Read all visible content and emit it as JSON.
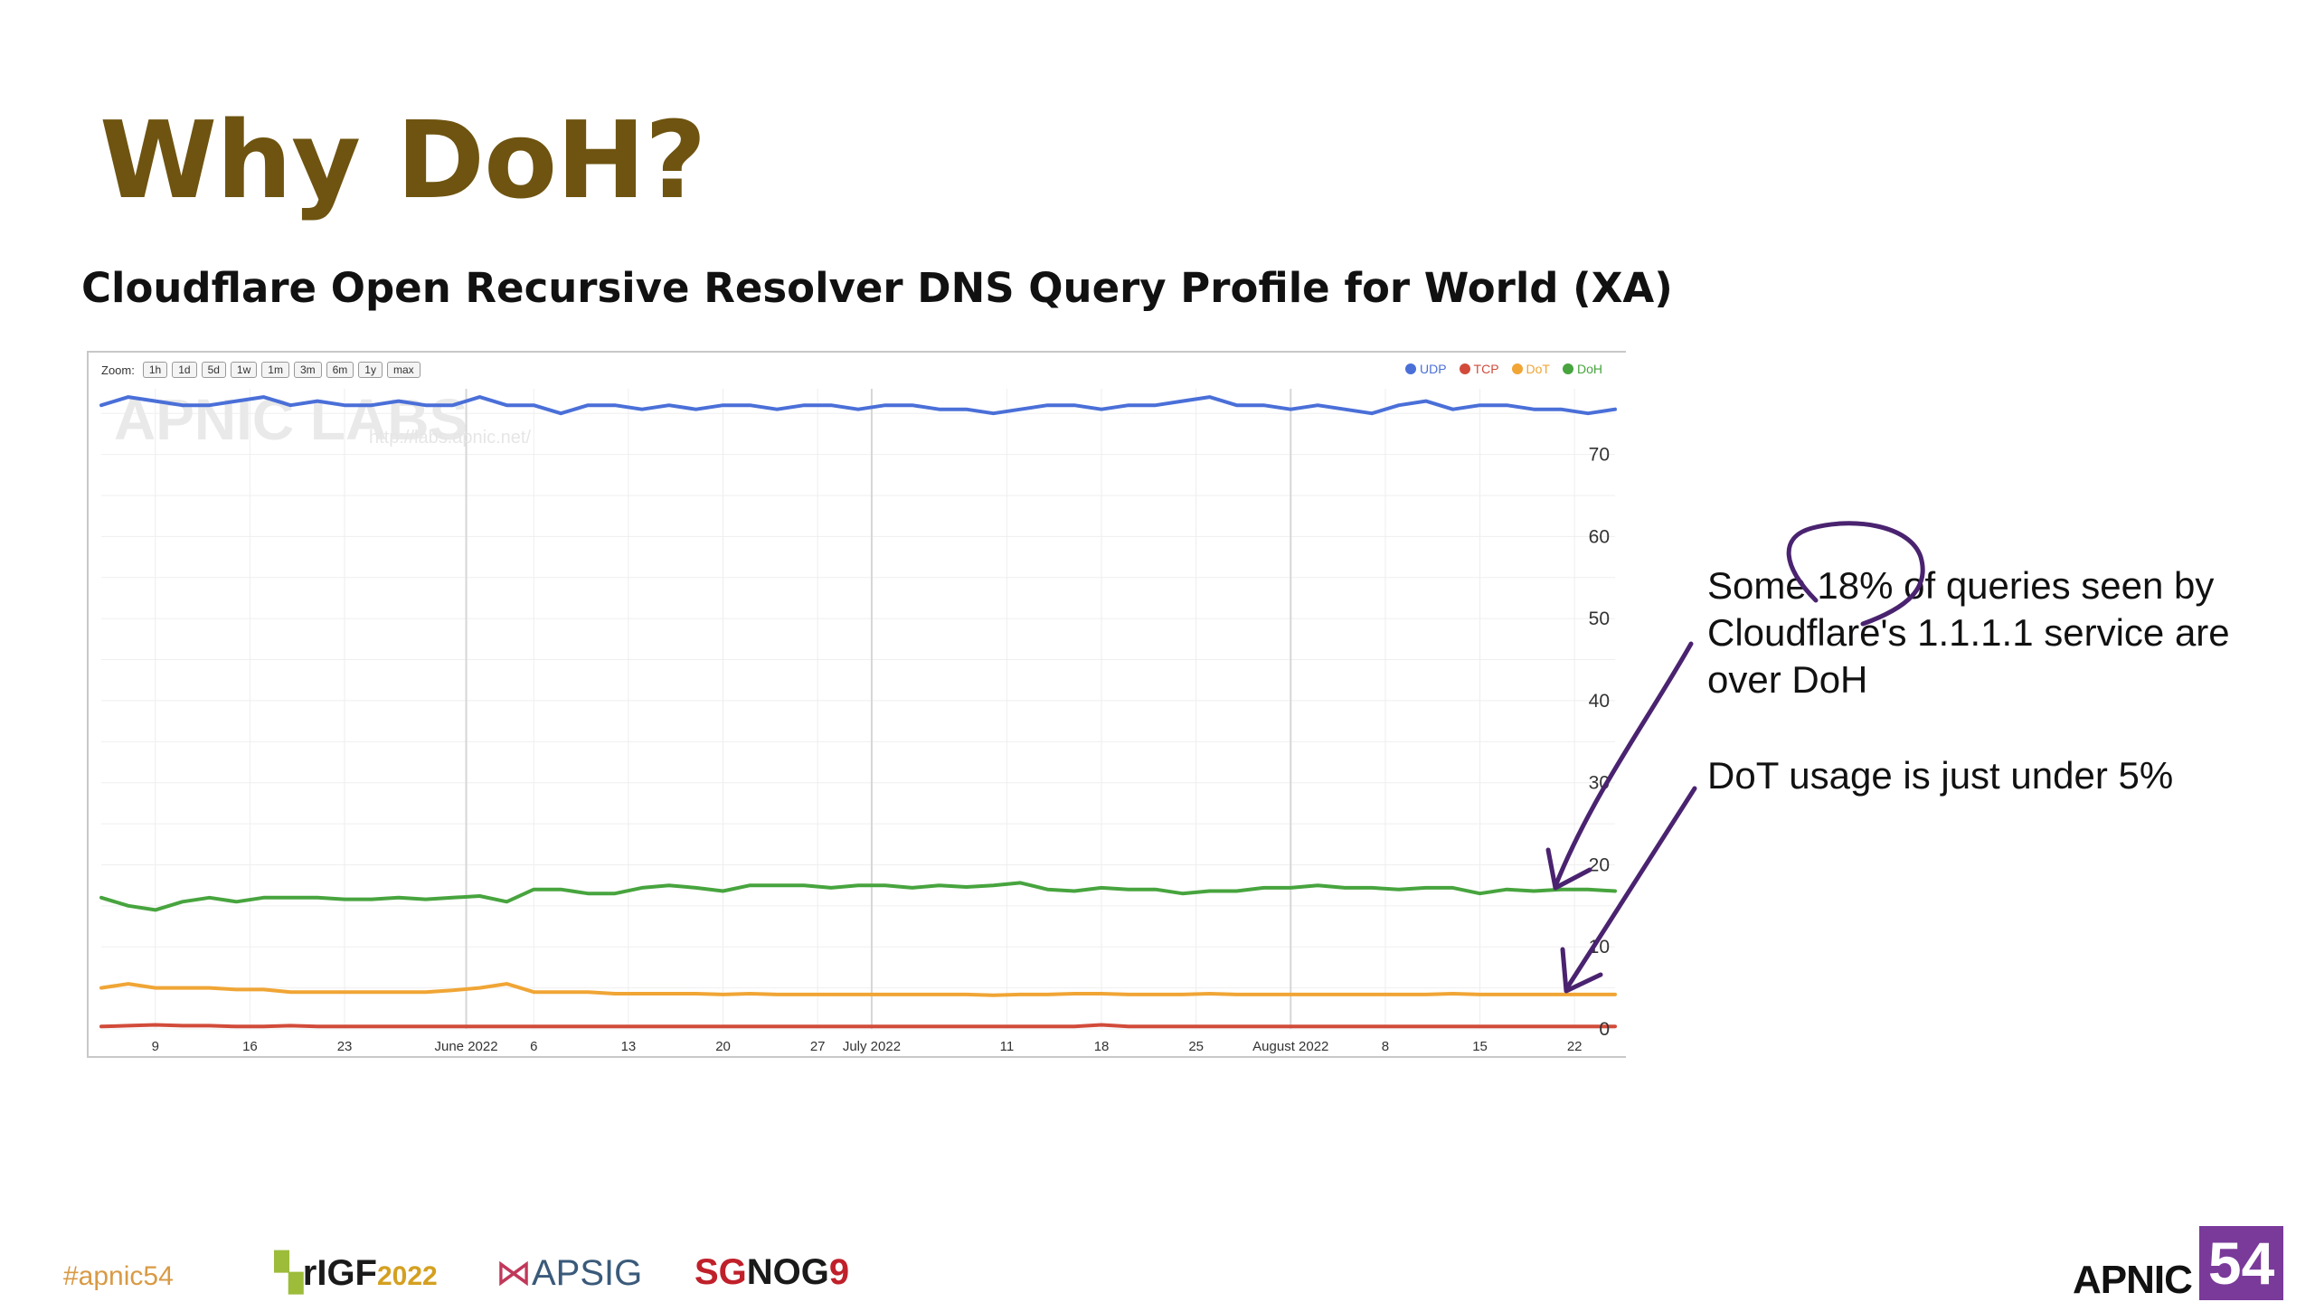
{
  "slide": {
    "title": "Why DoH?",
    "hashtag": "#apnic54"
  },
  "chart_data": {
    "type": "line",
    "title": "Cloudflare Open Recursive Resolver DNS Query Profile for World (XA)",
    "xlabel": "",
    "ylabel": "",
    "ylim": [
      0,
      78
    ],
    "grid": true,
    "legend_placement": "top-right",
    "zoom_label": "Zoom:",
    "zoom_buttons": [
      "1h",
      "1d",
      "5d",
      "1w",
      "1m",
      "3m",
      "6m",
      "1y",
      "max"
    ],
    "watermark": "APNIC LABS",
    "watermark_url": "http://labs.apnic.net/",
    "y_ticks": [
      {
        "value": 0,
        "label": "0"
      },
      {
        "value": 10,
        "label": "10"
      },
      {
        "value": 20,
        "label": "20"
      },
      {
        "value": 30,
        "label": "30"
      },
      {
        "value": 40,
        "label": "40"
      },
      {
        "value": 50,
        "label": "50"
      },
      {
        "value": 60,
        "label": "60"
      },
      {
        "value": 70,
        "label": "70"
      }
    ],
    "x_ticks": [
      {
        "date": "2022-05-09",
        "label": "9"
      },
      {
        "date": "2022-05-16",
        "label": "16"
      },
      {
        "date": "2022-05-23",
        "label": "23"
      },
      {
        "date": "2022-06-01",
        "label": "June 2022"
      },
      {
        "date": "2022-06-06",
        "label": "6"
      },
      {
        "date": "2022-06-13",
        "label": "13"
      },
      {
        "date": "2022-06-20",
        "label": "20"
      },
      {
        "date": "2022-06-27",
        "label": "27"
      },
      {
        "date": "2022-07-01",
        "label": "July 2022"
      },
      {
        "date": "2022-07-11",
        "label": "11"
      },
      {
        "date": "2022-07-18",
        "label": "18"
      },
      {
        "date": "2022-07-25",
        "label": "25"
      },
      {
        "date": "2022-08-01",
        "label": "August 2022"
      },
      {
        "date": "2022-08-08",
        "label": "8"
      },
      {
        "date": "2022-08-15",
        "label": "15"
      },
      {
        "date": "2022-08-22",
        "label": "22"
      }
    ],
    "x": [
      "2022-05-05",
      "2022-05-07",
      "2022-05-09",
      "2022-05-11",
      "2022-05-13",
      "2022-05-15",
      "2022-05-17",
      "2022-05-19",
      "2022-05-21",
      "2022-05-23",
      "2022-05-25",
      "2022-05-27",
      "2022-05-29",
      "2022-05-31",
      "2022-06-02",
      "2022-06-04",
      "2022-06-06",
      "2022-06-08",
      "2022-06-10",
      "2022-06-12",
      "2022-06-14",
      "2022-06-16",
      "2022-06-18",
      "2022-06-20",
      "2022-06-22",
      "2022-06-24",
      "2022-06-26",
      "2022-06-28",
      "2022-06-30",
      "2022-07-02",
      "2022-07-04",
      "2022-07-06",
      "2022-07-08",
      "2022-07-10",
      "2022-07-12",
      "2022-07-14",
      "2022-07-16",
      "2022-07-18",
      "2022-07-20",
      "2022-07-22",
      "2022-07-24",
      "2022-07-26",
      "2022-07-28",
      "2022-07-30",
      "2022-08-01",
      "2022-08-03",
      "2022-08-05",
      "2022-08-07",
      "2022-08-09",
      "2022-08-11",
      "2022-08-13",
      "2022-08-15",
      "2022-08-17",
      "2022-08-19",
      "2022-08-21",
      "2022-08-23",
      "2022-08-25"
    ],
    "series": [
      {
        "name": "UDP",
        "color": "#4a6fd8",
        "values": [
          76,
          77,
          76.5,
          76,
          76,
          76.5,
          77,
          76,
          76.5,
          76,
          76,
          76.5,
          76,
          76,
          77,
          76,
          76,
          75,
          76,
          76,
          75.5,
          76,
          75.5,
          76,
          76,
          75.5,
          76,
          76,
          75.5,
          76,
          76,
          75.5,
          75.5,
          75,
          75.5,
          76,
          76,
          75.5,
          76,
          76,
          76.5,
          77,
          76,
          76,
          75.5,
          76,
          75.5,
          75,
          76,
          76.5,
          75.5,
          76,
          76,
          75.5,
          75.5,
          75,
          75.5
        ]
      },
      {
        "name": "TCP",
        "color": "#d24b3a",
        "values": [
          0.3,
          0.4,
          0.5,
          0.4,
          0.4,
          0.3,
          0.3,
          0.4,
          0.3,
          0.3,
          0.3,
          0.3,
          0.3,
          0.3,
          0.3,
          0.3,
          0.3,
          0.3,
          0.3,
          0.3,
          0.3,
          0.3,
          0.3,
          0.3,
          0.3,
          0.3,
          0.3,
          0.3,
          0.3,
          0.3,
          0.3,
          0.3,
          0.3,
          0.3,
          0.3,
          0.3,
          0.3,
          0.5,
          0.3,
          0.3,
          0.3,
          0.3,
          0.3,
          0.3,
          0.3,
          0.3,
          0.3,
          0.3,
          0.3,
          0.3,
          0.3,
          0.3,
          0.3,
          0.3,
          0.3,
          0.3,
          0.3
        ]
      },
      {
        "name": "DoT",
        "color": "#f0a535",
        "values": [
          5,
          5.5,
          5,
          5,
          5,
          4.8,
          4.8,
          4.5,
          4.5,
          4.5,
          4.5,
          4.5,
          4.5,
          4.7,
          5,
          5.5,
          4.5,
          4.5,
          4.5,
          4.3,
          4.3,
          4.3,
          4.3,
          4.2,
          4.3,
          4.2,
          4.2,
          4.2,
          4.2,
          4.2,
          4.2,
          4.2,
          4.2,
          4.1,
          4.2,
          4.2,
          4.3,
          4.3,
          4.2,
          4.2,
          4.2,
          4.3,
          4.2,
          4.2,
          4.2,
          4.2,
          4.2,
          4.2,
          4.2,
          4.2,
          4.3,
          4.2,
          4.2,
          4.2,
          4.2,
          4.2,
          4.2
        ]
      },
      {
        "name": "DoH",
        "color": "#47a43e",
        "values": [
          16,
          15,
          14.5,
          15.5,
          16,
          15.5,
          16,
          16,
          16,
          15.8,
          15.8,
          16,
          15.8,
          16,
          16.2,
          15.5,
          17,
          17,
          16.5,
          16.5,
          17.2,
          17.5,
          17.2,
          16.8,
          17.5,
          17.5,
          17.5,
          17.2,
          17.5,
          17.5,
          17.2,
          17.5,
          17.3,
          17.5,
          17.8,
          17,
          16.8,
          17.2,
          17,
          17,
          16.5,
          16.8,
          16.8,
          17.2,
          17.2,
          17.5,
          17.2,
          17.2,
          17,
          17.2,
          17.2,
          16.5,
          17,
          16.8,
          17,
          17,
          16.8
        ]
      }
    ]
  },
  "annotations": {
    "doh_note": "Some 18% of queries seen by Cloudflare's 1.1.1.1 service are over DoH",
    "dot_note": "DoT usage is just under 5%"
  },
  "footer": {
    "logos": {
      "rigf": "rIGF",
      "rigf_year": "2022",
      "apsig": "APSIG",
      "sgnog_a": "SG",
      "sgnog_b": "NOG",
      "sgnog_num": "9"
    },
    "apnic": {
      "text": "APNIC",
      "number": "54"
    }
  },
  "colors": {
    "title": "#6e5410",
    "hashtag": "#d89a45",
    "apnic_purple": "#7a3a9a",
    "annotation_ink": "#4a2370"
  }
}
